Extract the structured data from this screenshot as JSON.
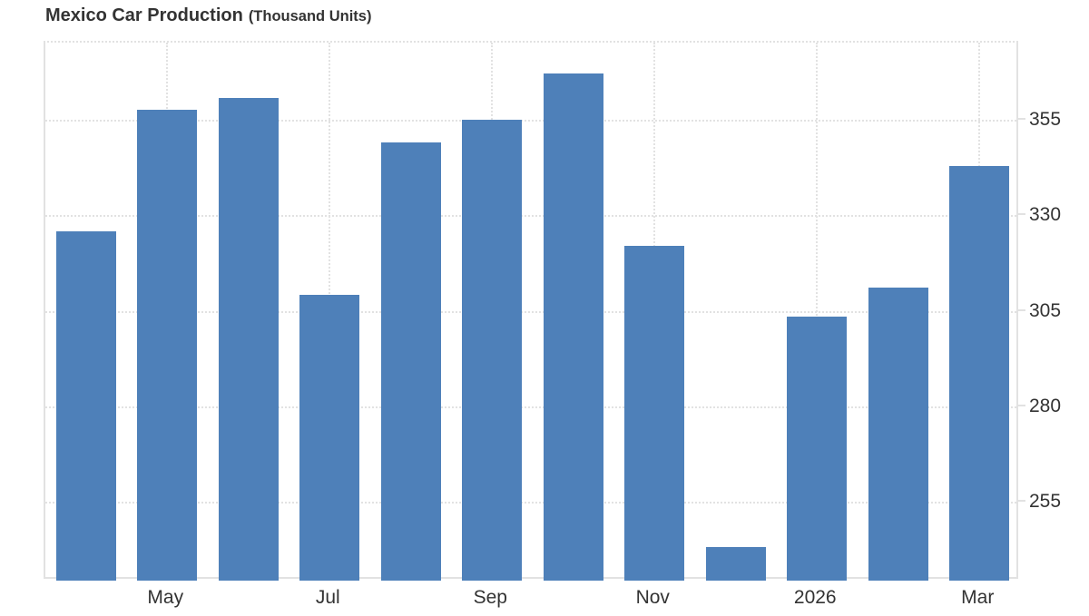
{
  "header": {
    "title": "Mexico Car Production",
    "subtitle": "(Thousand Units)"
  },
  "chart_data": {
    "type": "bar",
    "title": "Mexico Car Production",
    "subtitle": "(Thousand Units)",
    "ylabel": "Thousand Units",
    "xlabel": "",
    "values": [
      325.9,
      357.9,
      360.9,
      309.3,
      349.2,
      355.2,
      367.4,
      322.3,
      243.4,
      303.6,
      311.3,
      343.2
    ],
    "x_tick_labels": [
      {
        "label": "May",
        "bar_index": 1
      },
      {
        "label": "Jul",
        "bar_index": 3
      },
      {
        "label": "Sep",
        "bar_index": 5
      },
      {
        "label": "Nov",
        "bar_index": 7
      },
      {
        "label": "2026",
        "bar_index": 9
      },
      {
        "label": "Mar",
        "bar_index": 11
      }
    ],
    "y_ticks": [
      255,
      280,
      305,
      330,
      355
    ],
    "ylim": [
      234.6,
      375.4
    ],
    "bar_color": "#4e80b9",
    "grid": "dotted",
    "gridline_color": "#e2e2e2",
    "label_color": "#333333",
    "legend_position": "none",
    "axis_side": "right"
  }
}
